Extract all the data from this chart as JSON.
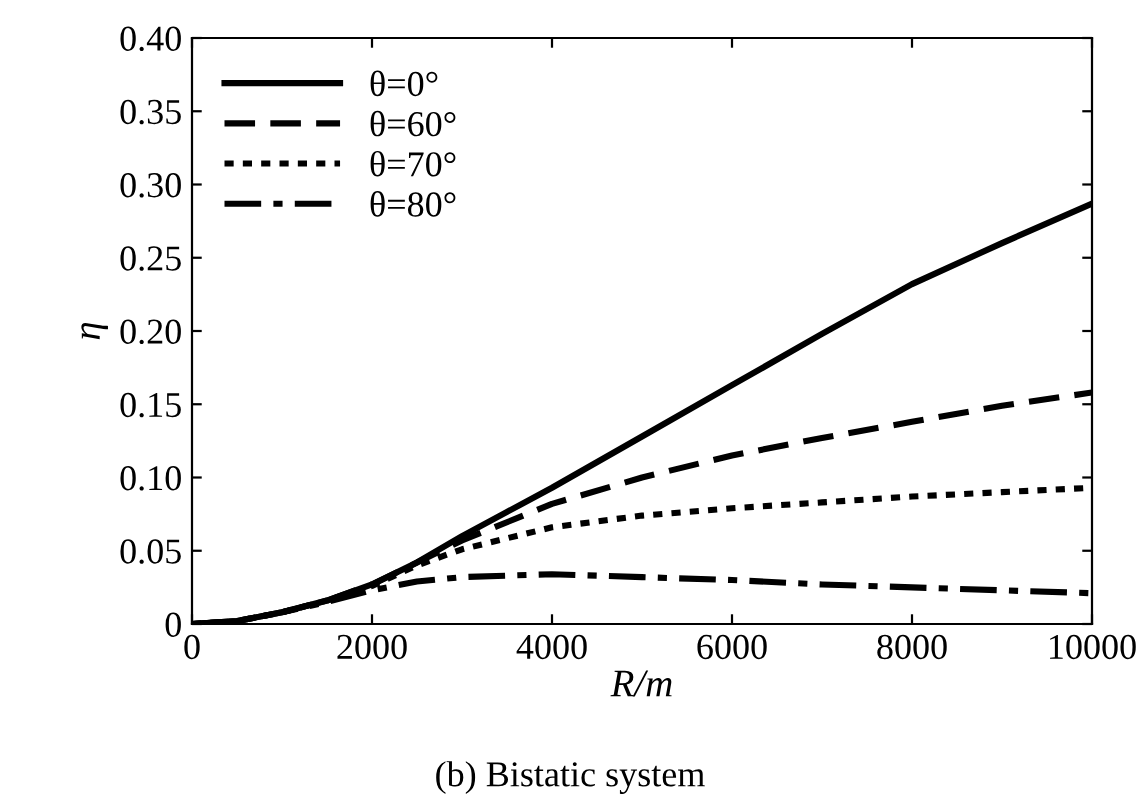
{
  "chart_data": {
    "type": "line",
    "xlabel": "R/m",
    "ylabel": "η",
    "annotations": [
      "(b) Bistatic system"
    ],
    "x": [
      0,
      500,
      1000,
      1500,
      2000,
      2500,
      3000,
      4000,
      5000,
      6000,
      7000,
      8000,
      9000,
      10000
    ],
    "xlim": [
      0,
      10000
    ],
    "ylim": [
      0,
      0.4
    ],
    "xticks": [
      0,
      2000,
      4000,
      6000,
      8000,
      10000
    ],
    "yticks": [
      {
        "value": 0,
        "label": "0"
      },
      {
        "value": 0.05,
        "label": "0.05"
      },
      {
        "value": 0.1,
        "label": "0.10"
      },
      {
        "value": 0.15,
        "label": "0.15"
      },
      {
        "value": 0.2,
        "label": "0.20"
      },
      {
        "value": 0.25,
        "label": "0.25"
      },
      {
        "value": 0.3,
        "label": "0.30"
      },
      {
        "value": 0.35,
        "label": "0.35"
      },
      {
        "value": 0.4,
        "label": "0.40"
      }
    ],
    "legend": "top left",
    "grid": false,
    "series": [
      {
        "name": "θ=0°",
        "color": "#000000",
        "line_style": "solid",
        "values": [
          0,
          0.002,
          0.008,
          0.016,
          0.027,
          0.042,
          0.06,
          0.093,
          0.128,
          0.163,
          0.198,
          0.232,
          0.26,
          0.287
        ]
      },
      {
        "name": "θ=60°",
        "color": "#000000",
        "line_style": "dashed",
        "values": [
          0,
          0.002,
          0.008,
          0.016,
          0.027,
          0.042,
          0.057,
          0.082,
          0.1,
          0.115,
          0.127,
          0.138,
          0.149,
          0.158
        ]
      },
      {
        "name": "θ=70°",
        "color": "#000000",
        "line_style": "dotted",
        "values": [
          0,
          0.002,
          0.008,
          0.016,
          0.026,
          0.04,
          0.051,
          0.066,
          0.074,
          0.079,
          0.083,
          0.087,
          0.09,
          0.093
        ]
      },
      {
        "name": "θ=80°",
        "color": "#000000",
        "line_style": "dashdot",
        "values": [
          0,
          0.002,
          0.008,
          0.015,
          0.023,
          0.029,
          0.032,
          0.034,
          0.032,
          0.03,
          0.027,
          0.025,
          0.023,
          0.021
        ]
      }
    ]
  }
}
